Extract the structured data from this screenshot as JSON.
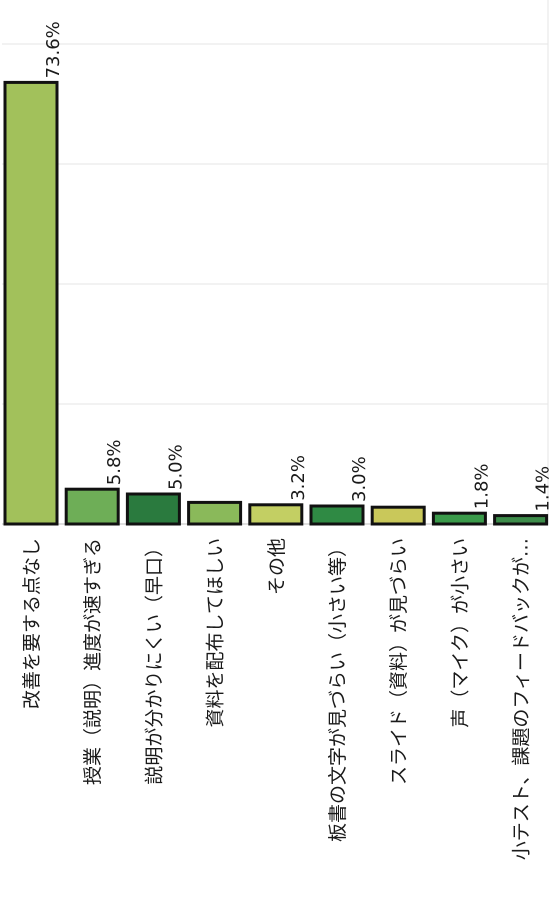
{
  "chart_data": {
    "type": "bar",
    "categories": [
      "改善を要する点なし",
      "授業（説明）進度が速すぎる",
      "説明が分かりにくい（早口）",
      "資料を配布してほしい",
      "その他",
      "板書の文字が見づらい（小さい等）",
      "スライド（資料）が見づらい",
      "声（マイク）が小さい",
      "小テスト、課題のフィードバックが…"
    ],
    "values": [
      73.6,
      5.8,
      5.0,
      3.6,
      3.2,
      3.0,
      2.8,
      1.8,
      1.4
    ],
    "value_labels": [
      "73.6%",
      "5.8%",
      "5.0%",
      "",
      "3.2%",
      "3.0%",
      "",
      "1.8%",
      "1.4%"
    ],
    "colors": [
      "#a2c15b",
      "#6eae57",
      "#2a7a3e",
      "#8ab95a",
      "#c3cf63",
      "#2f8a44",
      "#c9c85a",
      "#3a9a4a",
      "#3d8c4a"
    ],
    "ylim": [
      0,
      80
    ],
    "grid": true,
    "title": "",
    "xlabel": "",
    "ylabel": ""
  }
}
